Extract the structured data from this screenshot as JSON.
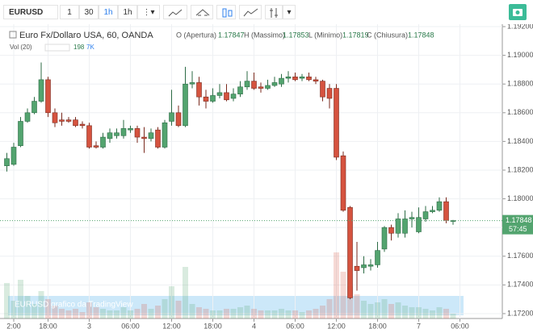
{
  "toolbar": {
    "symbol": "EURUSD",
    "intervals": [
      "1",
      "30",
      "1h",
      "1h"
    ]
  },
  "chart_data": {
    "type": "candlestick",
    "title": "Euro Fx/Dollaro USA, 60, OANDA",
    "ohlc_labels": [
      "O (Apertura)",
      "H (Massimo)",
      "L (Minimo)",
      "C (Chiusura)"
    ],
    "up_color": "#53a46f",
    "down_color": "#d5533f",
    "open": [
      1.1823,
      1.1824,
      1.1837,
      1.1854,
      1.186,
      1.1868,
      1.1883,
      1.186,
      1.1855,
      1.1855,
      1.1855,
      1.1852,
      1.1851,
      1.1837,
      1.1836,
      1.1842,
      1.1844,
      1.1844,
      1.1848,
      1.1849,
      1.1843,
      1.1842,
      1.1848,
      1.1836,
      1.1854,
      1.186,
      1.1851,
      1.188,
      1.1881,
      1.1871,
      1.1868,
      1.1872,
      1.1874,
      1.187,
      1.1873,
      1.1878,
      1.1882,
      1.1878,
      1.1877,
      1.1879,
      1.188,
      1.1884,
      1.1885,
      1.1884,
      1.1885,
      1.1883,
      1.1882,
      1.1877,
      1.1877,
      1.183,
      1.1794,
      1.1753,
      1.1752,
      1.1753,
      1.1754,
      1.1765,
      1.178,
      1.1776,
      1.1776,
      1.1786,
      1.1777,
      1.1786,
      1.1791,
      1.1792,
      1.1798,
      1.17847
    ],
    "high": [
      1.1832,
      1.1839,
      1.1857,
      1.1863,
      1.1871,
      1.1895,
      1.1885,
      1.1863,
      1.186,
      1.1857,
      1.1857,
      1.1854,
      1.1853,
      1.184,
      1.1846,
      1.1849,
      1.1849,
      1.1855,
      1.1851,
      1.1851,
      1.185,
      1.1849,
      1.185,
      1.1855,
      1.1876,
      1.1865,
      1.1892,
      1.1889,
      1.1885,
      1.1876,
      1.1877,
      1.188,
      1.188,
      1.1877,
      1.1882,
      1.1889,
      1.1888,
      1.1881,
      1.1883,
      1.1885,
      1.1887,
      1.1889,
      1.1888,
      1.1887,
      1.1888,
      1.1885,
      1.1883,
      1.188,
      1.188,
      1.1833,
      1.1795,
      1.177,
      1.176,
      1.1758,
      1.177,
      1.1781,
      1.1782,
      1.179,
      1.1792,
      1.1791,
      1.1794,
      1.1795,
      1.1795,
      1.1801,
      1.1801,
      1.17853
    ],
    "low": [
      1.1819,
      1.1823,
      1.1836,
      1.1853,
      1.1859,
      1.1867,
      1.1857,
      1.185,
      1.1851,
      1.1853,
      1.185,
      1.1849,
      1.1835,
      1.1835,
      1.1835,
      1.1839,
      1.1842,
      1.1842,
      1.1846,
      1.1839,
      1.1832,
      1.184,
      1.1835,
      1.1835,
      1.1851,
      1.185,
      1.185,
      1.1877,
      1.1865,
      1.1863,
      1.1867,
      1.187,
      1.1868,
      1.1868,
      1.1871,
      1.1876,
      1.1876,
      1.1874,
      1.1876,
      1.1878,
      1.1878,
      1.1881,
      1.1882,
      1.1882,
      1.1882,
      1.188,
      1.1868,
      1.1863,
      1.1827,
      1.1791,
      1.173,
      1.1736,
      1.1748,
      1.175,
      1.1752,
      1.1763,
      1.1771,
      1.1773,
      1.1773,
      1.178,
      1.1776,
      1.1784,
      1.179,
      1.1791,
      1.1783,
      1.17819
    ],
    "close": [
      1.1828,
      1.1836,
      1.1854,
      1.186,
      1.1868,
      1.1883,
      1.186,
      1.1853,
      1.1854,
      1.1854,
      1.1851,
      1.1851,
      1.1836,
      1.1836,
      1.1843,
      1.1846,
      1.1846,
      1.1849,
      1.1849,
      1.1843,
      1.1842,
      1.1846,
      1.1836,
      1.1853,
      1.186,
      1.1851,
      1.188,
      1.1881,
      1.1871,
      1.1868,
      1.1872,
      1.1874,
      1.1869,
      1.1873,
      1.1878,
      1.1882,
      1.1877,
      1.1877,
      1.1879,
      1.1881,
      1.1884,
      1.1885,
      1.1883,
      1.1885,
      1.1883,
      1.1882,
      1.1871,
      1.187,
      1.1829,
      1.1792,
      1.1731,
      1.175,
      1.1754,
      1.1754,
      1.1764,
      1.178,
      1.1776,
      1.1786,
      1.1786,
      1.1787,
      1.1787,
      1.1791,
      1.1792,
      1.1798,
      1.1785,
      1.17848
    ],
    "volume": {
      "label": "Vol (20)",
      "readout": [
        "198",
        "7K"
      ],
      "values": [
        44,
        22,
        48,
        28,
        18,
        34,
        24,
        16,
        12,
        10,
        12,
        8,
        20,
        14,
        12,
        10,
        10,
        14,
        10,
        12,
        18,
        12,
        16,
        24,
        40,
        22,
        64,
        18,
        14,
        12,
        10,
        10,
        12,
        12,
        14,
        16,
        12,
        10,
        10,
        10,
        12,
        10,
        10,
        8,
        10,
        12,
        16,
        24,
        82,
        58,
        40,
        30,
        22,
        18,
        20,
        24,
        18,
        20,
        16,
        14,
        14,
        12,
        10,
        14,
        12,
        6
      ]
    },
    "xlim": [
      -1,
      71
    ],
    "xticks": [
      {
        "value": 1,
        "label": "2:00"
      },
      {
        "value": 6,
        "label": "18:00"
      },
      {
        "value": 12,
        "label": "3"
      },
      {
        "value": 18,
        "label": "06:00"
      },
      {
        "value": 24,
        "label": "12:00"
      },
      {
        "value": 30,
        "label": "18:00"
      },
      {
        "value": 36,
        "label": "4"
      },
      {
        "value": 42,
        "label": "06:00"
      },
      {
        "value": 48,
        "label": "12:00"
      },
      {
        "value": 54,
        "label": "18:00"
      },
      {
        "value": 60,
        "label": "7"
      },
      {
        "value": 66,
        "label": "06:00"
      }
    ],
    "ylim": [
      1.17166,
      1.19217
    ],
    "yticks": [
      {
        "value": 1.172,
        "label": "1.17200"
      },
      {
        "value": 1.174,
        "label": "1.17400"
      },
      {
        "value": 1.176,
        "label": "1.17600"
      },
      {
        "value": 1.178,
        "label": "1.17800"
      },
      {
        "value": 1.18,
        "label": "1.18000"
      },
      {
        "value": 1.182,
        "label": "1.18200"
      },
      {
        "value": 1.184,
        "label": "1.18400"
      },
      {
        "value": 1.186,
        "label": "1.18600"
      },
      {
        "value": 1.188,
        "label": "1.18800"
      },
      {
        "value": 1.19,
        "label": "1.19000"
      },
      {
        "value": 1.192,
        "label": "1.19200"
      }
    ],
    "grid": true,
    "countdown": "57:45",
    "watermark": "EURUSD grafico da TradingView"
  }
}
